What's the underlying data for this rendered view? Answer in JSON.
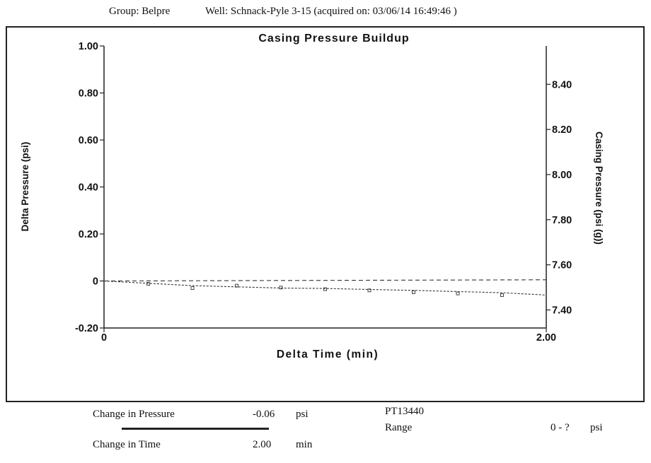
{
  "header": {
    "group": "Group: Belpre",
    "well": "Well: Schnack-Pyle 3-15 (acquired on: 03/06/14 16:49:46 )"
  },
  "chart_data": {
    "type": "line",
    "title": "Casing Pressure Buildup",
    "xlabel": "Delta Time (min)",
    "ylabel_left": "Delta Pressure (psi)",
    "ylabel_right": "Casing Pressure (psi (g))",
    "xlim": [
      0,
      2.0
    ],
    "ylim_left": [
      -0.2,
      1.0
    ],
    "ylim_right": [
      7.32,
      8.57
    ],
    "x_ticks": [
      "0",
      "2.00"
    ],
    "y_left_ticks": [
      "1.00",
      "0.80",
      "0.60",
      "0.40",
      "0.20",
      "0",
      "-0.20"
    ],
    "y_right_ticks": [
      "8.40",
      "8.20",
      "8.00",
      "7.80",
      "7.60",
      "7.40"
    ],
    "series": [
      {
        "axis": "left",
        "x": [
          0,
          0.2,
          0.4,
          0.6,
          0.8,
          1.0,
          1.2,
          1.4,
          1.6,
          1.8,
          2.0
        ],
        "y": [
          0,
          -0.01,
          -0.02,
          -0.025,
          -0.03,
          -0.032,
          -0.036,
          -0.04,
          -0.045,
          -0.05,
          -0.06
        ]
      },
      {
        "axis": "left",
        "style": "dashed",
        "x": [
          0,
          2.0
        ],
        "y": [
          0,
          0.005
        ]
      }
    ],
    "marker_points": [
      {
        "x": 0.2,
        "y": -0.012
      },
      {
        "x": 0.4,
        "y": -0.03
      },
      {
        "x": 0.6,
        "y": -0.02
      },
      {
        "x": 0.8,
        "y": -0.028
      },
      {
        "x": 1.0,
        "y": -0.035
      },
      {
        "x": 1.2,
        "y": -0.04
      },
      {
        "x": 1.4,
        "y": -0.048
      },
      {
        "x": 1.6,
        "y": -0.053
      },
      {
        "x": 1.8,
        "y": -0.06
      }
    ]
  },
  "footer": {
    "change_pressure_label": "Change in Pressure",
    "change_pressure_value": "-0.06",
    "change_pressure_unit": "psi",
    "change_time_label": "Change in Time",
    "change_time_value": "2.00",
    "change_time_unit": "min",
    "gauge_id": "PT13440",
    "range_label": "Range",
    "range_value": "0 - ?",
    "range_unit": "psi"
  }
}
